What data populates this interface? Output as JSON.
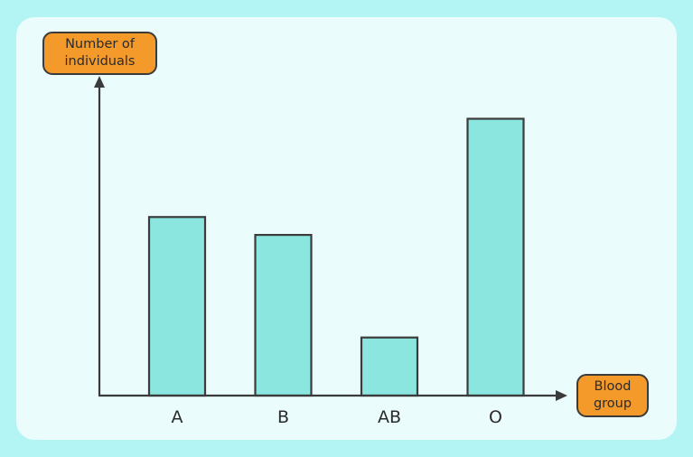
{
  "colors": {
    "background": "#b3f4f4",
    "panel": "#ebfcfd",
    "bar_fill": "#8ae6df",
    "label_box_fill": "#f39a2a",
    "axis": "#3b3b3b"
  },
  "chart_data": {
    "type": "bar",
    "categories": [
      "A",
      "B",
      "AB",
      "O"
    ],
    "values": [
      40,
      36,
      13,
      62
    ],
    "title": "",
    "xlabel": "Blood group",
    "xlabel_lines": [
      "Blood",
      "group"
    ],
    "ylabel": "Number of individuals",
    "ylabel_lines": [
      "Number of",
      "individuals"
    ],
    "ylim": [
      0,
      70
    ],
    "y_ticks_shown": false,
    "grid": false,
    "legend": "none"
  }
}
